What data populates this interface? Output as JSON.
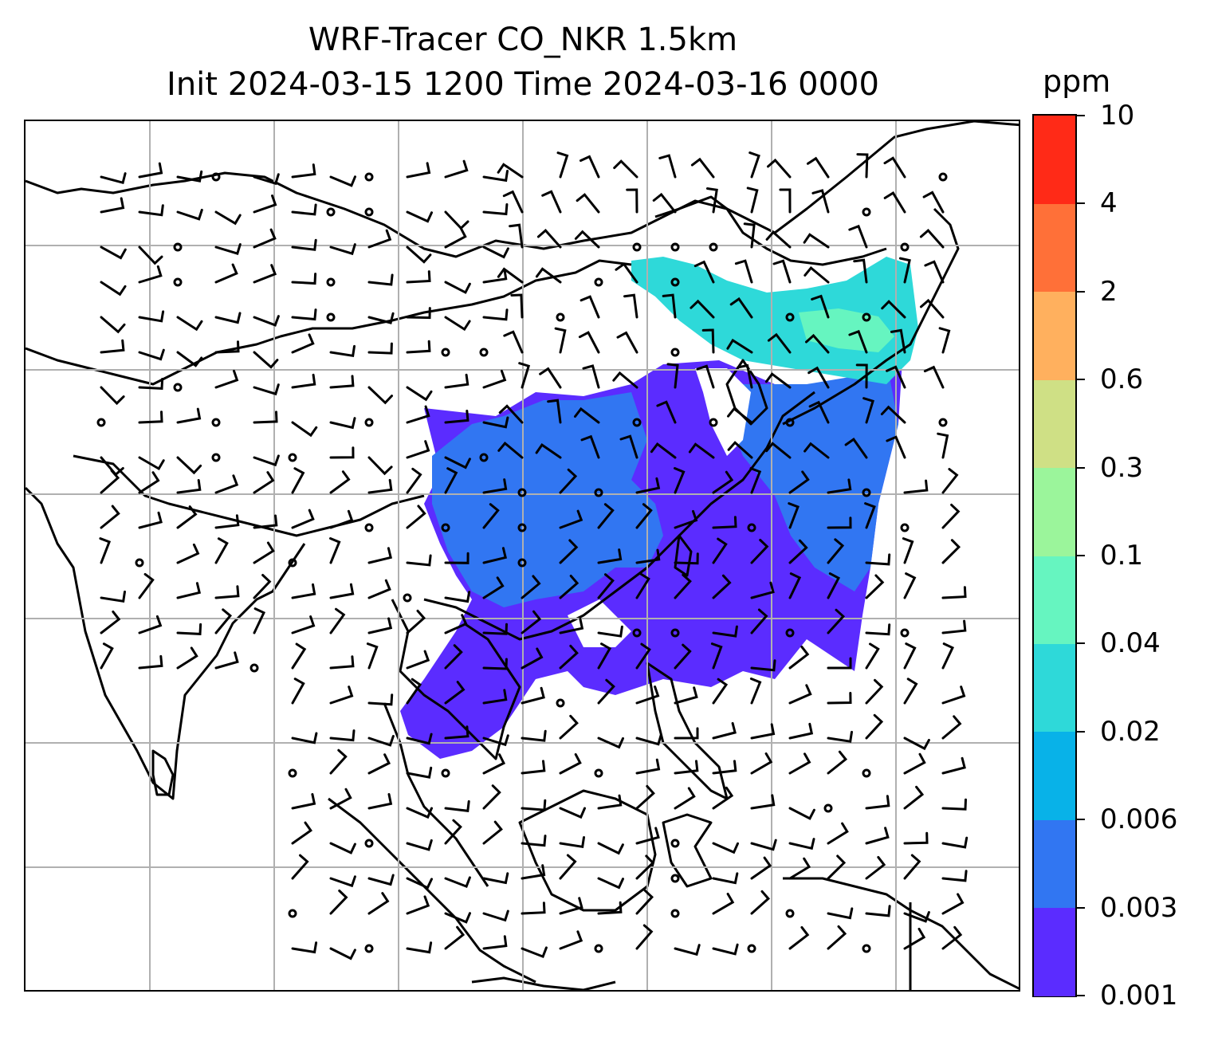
{
  "title": {
    "line1": "WRF-Tracer CO_NKR 1.5km",
    "line2": "Init 2024-03-15 1200 Time 2024-03-16 0000"
  },
  "colorbar": {
    "unit": "ppm",
    "levels": [
      "0.001",
      "0.003",
      "0.006",
      "0.02",
      "0.04",
      "0.1",
      "0.3",
      "0.6",
      "2",
      "4",
      "10"
    ],
    "colors": [
      "#5b2cff",
      "#3176f2",
      "#08b2e8",
      "#2ed9d9",
      "#66f5c0",
      "#9bf59b",
      "#cfe085",
      "#ffb05e",
      "#ff7038",
      "#ff2a17"
    ]
  },
  "map": {
    "gridlines": true,
    "wind_barbs": true,
    "field": "CO tracer concentration (shaded)",
    "plume_colors": {
      "low": "#5b2cff",
      "mid": "#3176f2",
      "high": "#2ed9d9",
      "peak": "#66f5c0"
    }
  }
}
